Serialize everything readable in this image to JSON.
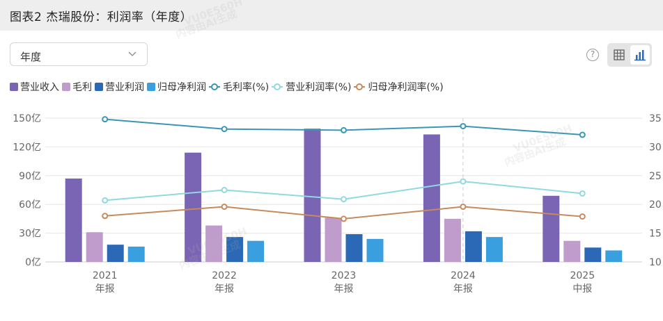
{
  "header": {
    "title": "图表2 杰瑞股份：利润率（年度）"
  },
  "controls": {
    "period_select": "年度",
    "help_icon": "question-circle-icon",
    "view_table_icon": "table-icon",
    "view_chart_icon": "bar-chart-icon"
  },
  "watermarks": [
    "VU0E560H",
    "内容由AI生成"
  ],
  "legend": [
    {
      "label": "营业收入",
      "kind": "bar",
      "color": "#7a65b4"
    },
    {
      "label": "毛利",
      "kind": "bar",
      "color": "#c09ccd"
    },
    {
      "label": "营业利润",
      "kind": "bar",
      "color": "#2b68b5"
    },
    {
      "label": "归母净利润",
      "kind": "bar",
      "color": "#3a9fdf"
    },
    {
      "label": "毛利率(%)",
      "kind": "line",
      "color": "#3797b4"
    },
    {
      "label": "营业利润率(%)",
      "kind": "line",
      "color": "#8fd9e0"
    },
    {
      "label": "归母净利润率(%)",
      "kind": "line",
      "color": "#c68a5c"
    }
  ],
  "chart_data": {
    "type": "bar",
    "categories": [
      "2021",
      "2022",
      "2023",
      "2024",
      "2025"
    ],
    "category_sublabels": [
      "年报",
      "年报",
      "年报",
      "年报",
      "中报"
    ],
    "left_axis": {
      "ticks": [
        "0亿",
        "30亿",
        "60亿",
        "90亿",
        "120亿",
        "150亿"
      ],
      "ylim": [
        0,
        150
      ],
      "unit": "亿"
    },
    "right_axis": {
      "ticks": [
        "10",
        "15",
        "20",
        "25",
        "30",
        "35"
      ],
      "ylim": [
        10,
        35
      ]
    },
    "grid": true,
    "legend_position": "top-left",
    "highlighted_category": "2024",
    "bar_series": [
      {
        "name": "营业收入",
        "color": "#7a65b4",
        "values": [
          87,
          114,
          139,
          133,
          69
        ]
      },
      {
        "name": "毛利",
        "color": "#c09ccd",
        "values": [
          31,
          38,
          46,
          45,
          22
        ]
      },
      {
        "name": "营业利润",
        "color": "#2b68b5",
        "values": [
          18,
          26,
          29,
          32,
          15
        ]
      },
      {
        "name": "归母净利润",
        "color": "#3a9fdf",
        "values": [
          16,
          22,
          24,
          26,
          12
        ]
      }
    ],
    "line_series": [
      {
        "name": "毛利率(%)",
        "color": "#3797b4",
        "values": [
          34.8,
          33.1,
          32.9,
          33.6,
          32.1
        ]
      },
      {
        "name": "营业利润率(%)",
        "color": "#8fd9e0",
        "values": [
          20.7,
          22.5,
          20.9,
          24.0,
          21.9
        ]
      },
      {
        "name": "归母净利润率(%)",
        "color": "#c68a5c",
        "values": [
          18.0,
          19.6,
          17.5,
          19.6,
          17.9
        ]
      }
    ]
  }
}
